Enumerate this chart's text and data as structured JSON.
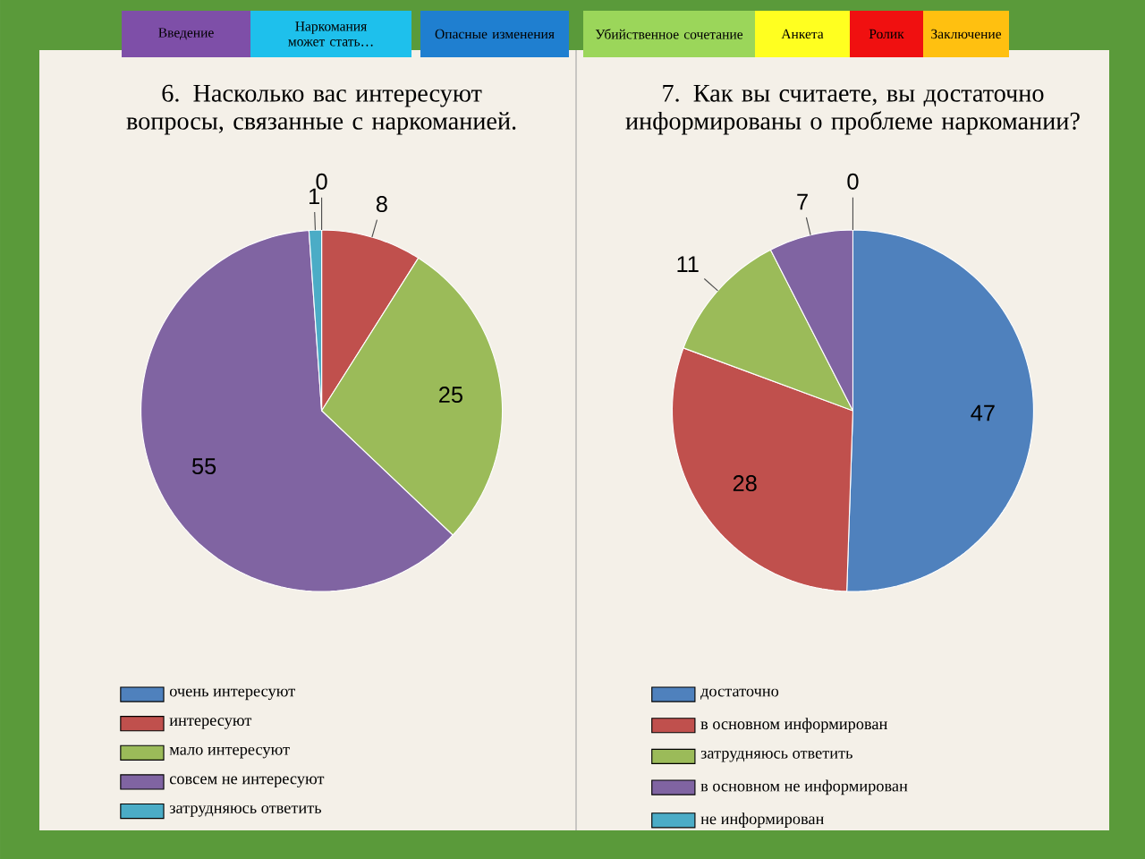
{
  "chart_data": [
    {
      "type": "pie",
      "title": "6. Насколько вас интересуют вопросы, связанные с наркоманией.",
      "categories": [
        "очень интересуют",
        "интересуют",
        "мало интересуют",
        "совсем не интересуют",
        "затрудняюсь ответить"
      ],
      "values": [
        0,
        8,
        25,
        55,
        1
      ],
      "value_labels": [
        "0",
        "8",
        "25",
        "55",
        "1"
      ],
      "colors": [
        "#4f81bd",
        "#c0504d",
        "#9bbb59",
        "#8064a2",
        "#4bacc6"
      ],
      "legend": "bottom",
      "annotations": [
        "Введение",
        "Наркомания может стать…",
        "Опасные изменения",
        "Убийственное сочетание",
        "Анкета",
        "Ролик",
        "Заключение"
      ]
    },
    {
      "type": "pie",
      "title": "7. Как вы считаете, вы достаточно информированы о проблеме наркомании?",
      "categories": [
        "достаточно",
        "в основном информирован",
        "затрудняюсь ответить",
        "в основном не информирован",
        "не информирован"
      ],
      "values": [
        47,
        28,
        11,
        7,
        0
      ],
      "value_labels": [
        "47",
        "28",
        "11",
        "7",
        "0"
      ],
      "colors": [
        "#4f81bd",
        "#c0504d",
        "#9bbb59",
        "#8064a2",
        "#4bacc6"
      ],
      "legend": "bottom"
    }
  ]
}
